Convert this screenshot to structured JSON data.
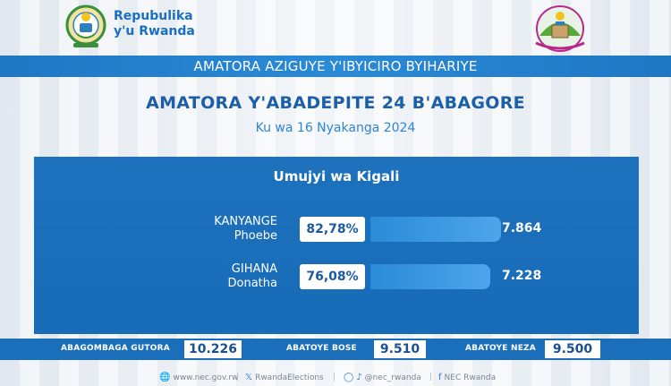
{
  "header": {
    "republic_line1": "Repubulika",
    "republic_line2": "y'u Rwanda",
    "coat_of_arms_icon": "coat-of-arms-icon",
    "nec_logo_icon": "nec-logo-icon"
  },
  "banner": {
    "text": "AMATORA AZIGUYE Y'IBYICIRO BYIHARIYE"
  },
  "title": "AMATORA Y'ABADEPITE 24 B'ABAGORE",
  "subtitle": "Ku wa 16 Nyakanga 2024",
  "results": {
    "district": "Umujyi wa Kigali",
    "candidates": [
      {
        "surname": "KANYANGE",
        "given_name": "Phoebe",
        "percent": "82,78%",
        "percent_value": 82.78,
        "votes": "7.864"
      },
      {
        "surname": "GIHANA",
        "given_name": "Donatha",
        "percent": "76,08%",
        "percent_value": 76.08,
        "votes": "7.228"
      }
    ]
  },
  "stats": {
    "registered_label": "ABAGOMBAGA GUTORA",
    "registered_value": "10.226",
    "voted_label": "ABATOYE BOSE",
    "voted_value": "9.510",
    "valid_label": "ABATOYE NEZA",
    "valid_value": "9.500"
  },
  "footer": {
    "website": "www.nec.gov.rw",
    "x_handle": "RwandaElections",
    "insta_tiktok_handle": "@nec_rwanda",
    "facebook": "NEC Rwanda"
  },
  "colors": {
    "primary_blue": "#1e72bd",
    "title_blue": "#1d5ea8",
    "accent_blue": "#2d86d1"
  }
}
